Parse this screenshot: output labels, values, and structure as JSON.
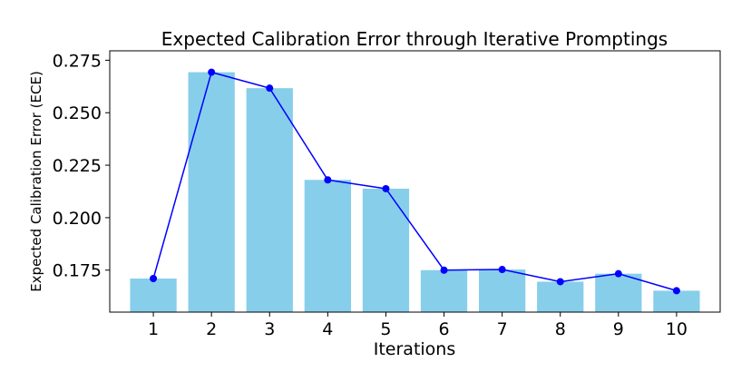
{
  "chart_data": {
    "type": "bar",
    "title": "Expected Calibration Error through Iterative Promptings",
    "xlabel": "Iterations",
    "ylabel": "Expected Calibration Error (ECE)",
    "categories": [
      "1",
      "2",
      "3",
      "4",
      "5",
      "6",
      "7",
      "8",
      "9",
      "10"
    ],
    "values": [
      0.171,
      0.2693,
      0.2617,
      0.218,
      0.2138,
      0.175,
      0.1753,
      0.1695,
      0.1733,
      0.1652
    ],
    "line_values": [
      0.171,
      0.2693,
      0.2617,
      0.218,
      0.2138,
      0.175,
      0.1753,
      0.1695,
      0.1733,
      0.1652
    ],
    "ylim": [
      0.155,
      0.2795
    ],
    "yticks": [
      0.175,
      0.2,
      0.225,
      0.25,
      0.275
    ],
    "ytick_labels": [
      "0.175",
      "0.200",
      "0.225",
      "0.250",
      "0.275"
    ],
    "grid": false,
    "bar_color": "#87ceeb",
    "line_color": "#0000ff"
  }
}
